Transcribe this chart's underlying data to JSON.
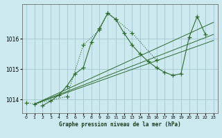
{
  "title": "Graphe pression niveau de la mer (hPa)",
  "bg_color": "#cce9f0",
  "grid_color": "#9bbfc8",
  "line_color": "#2d6b2d",
  "xlim": [
    -0.5,
    23.5
  ],
  "ylim": [
    1013.55,
    1017.15
  ],
  "yticks": [
    1014,
    1015,
    1016
  ],
  "xticks": [
    0,
    1,
    2,
    3,
    4,
    5,
    6,
    7,
    8,
    9,
    10,
    11,
    12,
    13,
    14,
    15,
    16,
    17,
    18,
    19,
    20,
    21,
    22,
    23
  ],
  "series_main": {
    "x": [
      2,
      3,
      4,
      5,
      6,
      7,
      8,
      9,
      10,
      11,
      12,
      13,
      14,
      15,
      16,
      17,
      18,
      19,
      20,
      21,
      22
    ],
    "y": [
      1013.8,
      1013.95,
      1014.15,
      1014.45,
      1014.85,
      1015.05,
      1015.9,
      1016.35,
      1016.85,
      1016.65,
      1016.2,
      1015.8,
      1015.5,
      1015.25,
      1015.05,
      1014.9,
      1014.8,
      1014.85,
      1016.05,
      1016.75,
      1016.15
    ]
  },
  "series_dotted": {
    "x": [
      0,
      1,
      5,
      7,
      9,
      10,
      11,
      13,
      16
    ],
    "y": [
      1013.9,
      1013.85,
      1014.1,
      1015.8,
      1016.3,
      1016.85,
      1016.65,
      1016.2,
      1015.3
    ]
  },
  "diag_lines": [
    {
      "x": [
        1,
        23
      ],
      "y": [
        1013.85,
        1016.55
      ]
    },
    {
      "x": [
        1,
        23
      ],
      "y": [
        1013.85,
        1016.15
      ]
    },
    {
      "x": [
        1,
        23
      ],
      "y": [
        1013.85,
        1015.95
      ]
    }
  ]
}
